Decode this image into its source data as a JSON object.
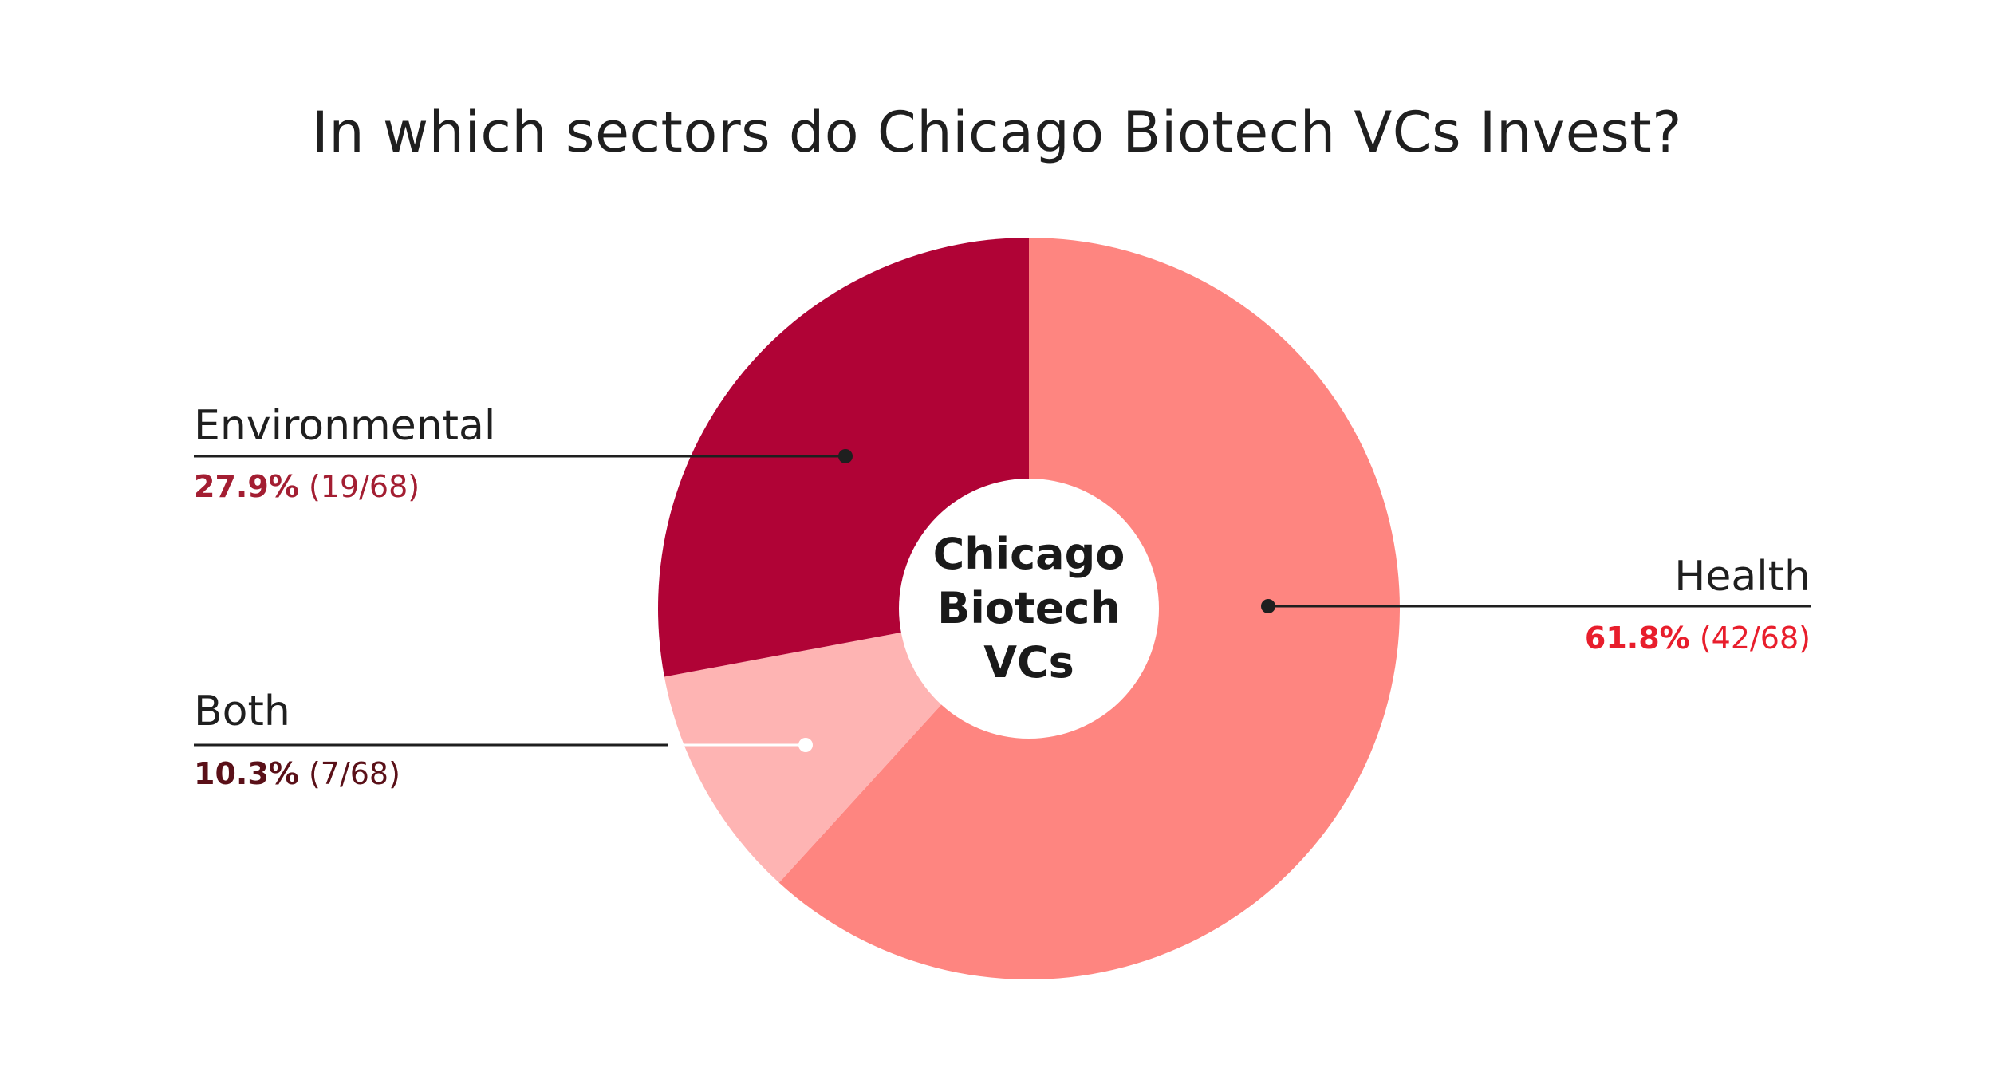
{
  "chart_data": {
    "type": "pie",
    "title": "In which sectors do Chicago Biotech VCs Invest?",
    "center_label": [
      "Chicago",
      "Biotech",
      "VCs"
    ],
    "total": 68,
    "slices": [
      {
        "label": "Health",
        "percent": "61.8%",
        "count": "(42/68)",
        "value": 42,
        "color": "#fe8580",
        "pct_color": "#e81e2c"
      },
      {
        "label": "Both",
        "percent": "10.3%",
        "count": "(7/68)",
        "value": 7,
        "color": "#feb4b3",
        "pct_color": "#5a1018"
      },
      {
        "label": "Environmental",
        "percent": "27.9%",
        "count": "(19/68)",
        "value": 19,
        "color": "#b00336",
        "pct_color": "#a31e32"
      }
    ]
  }
}
